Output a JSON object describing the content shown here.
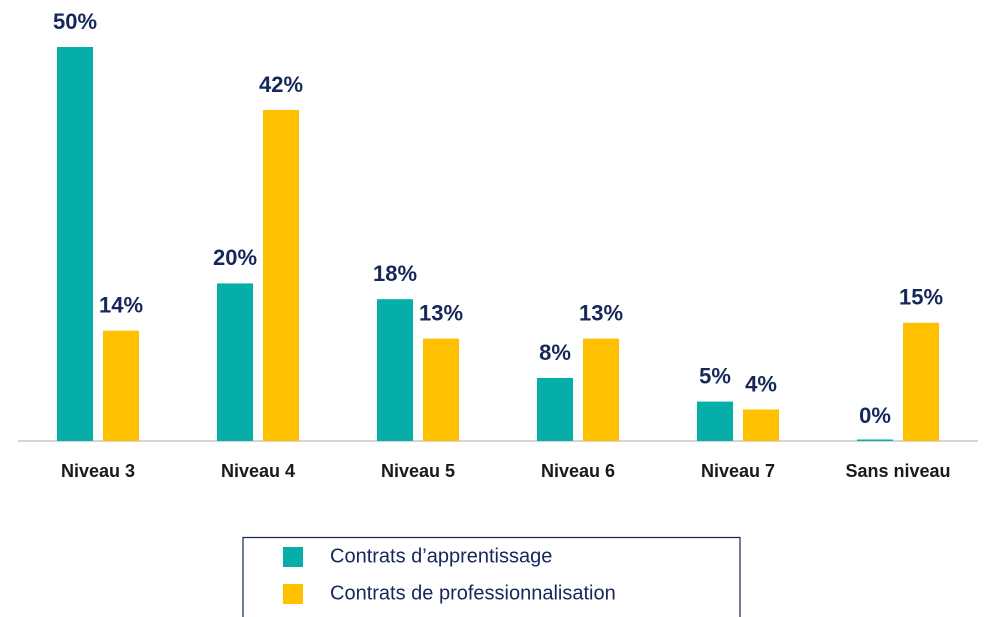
{
  "chart_data": {
    "type": "bar",
    "categories": [
      "Niveau 3",
      "Niveau 4",
      "Niveau 5",
      "Niveau 6",
      "Niveau 7",
      "Sans niveau"
    ],
    "series": [
      {
        "name": "Contrats d’apprentissage",
        "color": "#06aea8",
        "values": [
          50,
          20,
          18,
          8,
          5,
          0
        ],
        "value_labels": [
          "50%",
          "20%",
          "18%",
          "8%",
          "5%",
          "0%"
        ]
      },
      {
        "name": "Contrats de professionnalisation",
        "color": "#ffc000",
        "values": [
          14,
          42,
          13,
          13,
          4,
          15
        ],
        "value_labels": [
          "14%",
          "42%",
          "13%",
          "13%",
          "4%",
          "15%"
        ]
      }
    ]
  }
}
